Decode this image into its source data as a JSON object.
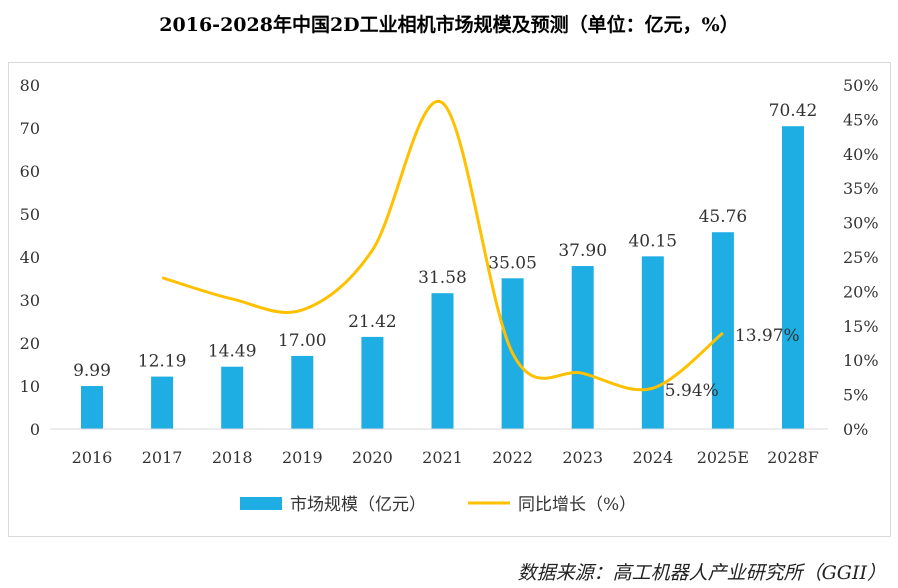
{
  "title": "2016-2028年中国2D工业相机市场规模及预测（单位：亿元，%）",
  "source": "数据来源：高工机器人产业研究所（GGII）",
  "colors": {
    "bar": "#1eaee3",
    "line": "#ffc000"
  },
  "chart_data": {
    "type": "bar+line",
    "categories": [
      "2016",
      "2017",
      "2018",
      "2019",
      "2020",
      "2021",
      "2022",
      "2023",
      "2024",
      "2025E",
      "2028F"
    ],
    "series": [
      {
        "name": "市场规模（亿元）",
        "type": "bar",
        "axis": "left",
        "values": [
          9.99,
          12.19,
          14.49,
          17.0,
          21.42,
          31.58,
          35.05,
          37.9,
          40.15,
          45.76,
          70.42
        ],
        "labels": [
          "9.99",
          "12.19",
          "14.49",
          "17.00",
          "21.42",
          "31.58",
          "35.05",
          "37.90",
          "40.15",
          "45.76",
          "70.42"
        ]
      },
      {
        "name": "同比增长（%）",
        "type": "line",
        "axis": "right",
        "values": [
          null,
          22.0,
          18.9,
          17.3,
          26.0,
          47.4,
          11.0,
          8.1,
          5.94,
          13.97,
          null
        ],
        "labels": {
          "8": "5.94%",
          "9": "13.97%"
        }
      }
    ],
    "ylim_left": [
      0,
      80
    ],
    "yticks_left": [
      "0",
      "10",
      "20",
      "30",
      "40",
      "50",
      "60",
      "70",
      "80"
    ],
    "ylim_right": [
      0,
      50
    ],
    "yticks_right": [
      "0%",
      "5%",
      "10%",
      "15%",
      "20%",
      "25%",
      "30%",
      "35%",
      "40%",
      "45%",
      "50%"
    ],
    "grid": false,
    "legend": "bottom"
  }
}
